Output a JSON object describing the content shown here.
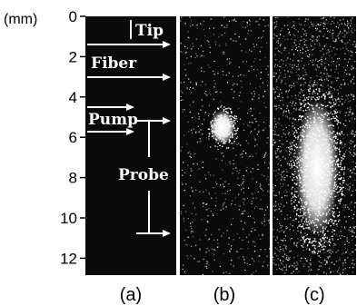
{
  "axis": {
    "unit_label": "(mm)",
    "ticks": [
      0,
      2,
      4,
      6,
      8,
      10,
      12
    ],
    "range_mm": [
      0,
      13
    ]
  },
  "panels": [
    {
      "label": "(a)"
    },
    {
      "label": "(b)"
    },
    {
      "label": "(c)"
    }
  ],
  "annotations": {
    "tip": "Tip",
    "fiber": "Fiber",
    "pump": "Pump",
    "probe": "Probe"
  },
  "arrows_mm": {
    "fiber": [
      1.3,
      3.2
    ],
    "pump": [
      5.6
    ],
    "probe": [
      5.1,
      10.7
    ]
  },
  "emission_spots": [
    {
      "panel": "(b)",
      "center_mm": 5.5,
      "length_mm": 1.7
    },
    {
      "panel": "(c)",
      "center_mm": 7.5,
      "length_mm": 6.8
    }
  ],
  "colors": {
    "panel_bg": "#0a0a0a",
    "annotation": "#ffffff",
    "frame": "#000000"
  }
}
